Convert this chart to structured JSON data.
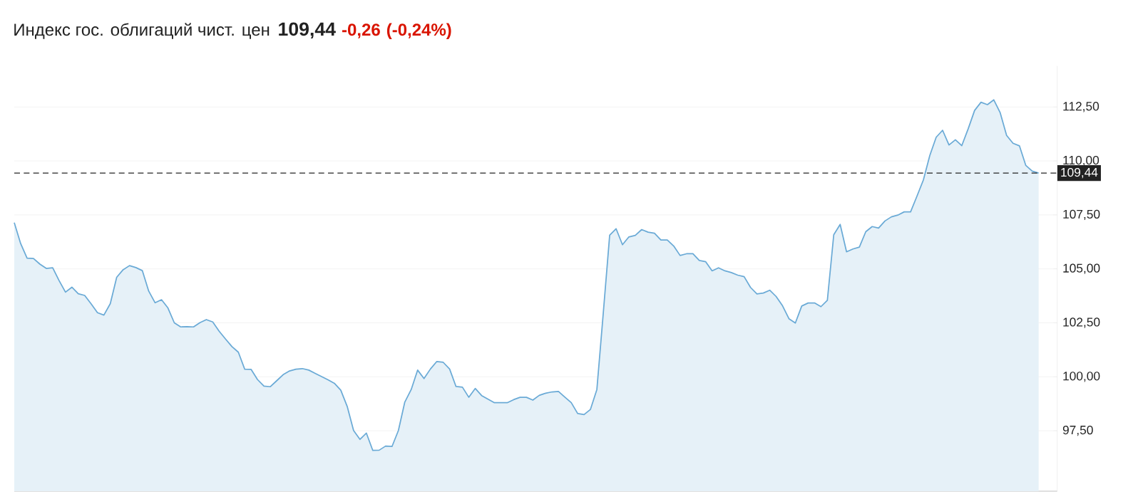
{
  "chart_data": {
    "type": "area",
    "title": "Индекс гос. облигаций чист. цен",
    "annotations": [
      "109,44",
      "-0,26",
      "(-0,24%)"
    ],
    "categories": [
      null,
      null,
      null,
      null,
      null,
      null,
      null,
      null,
      null,
      null,
      null,
      null,
      null,
      null,
      null,
      null,
      null,
      null,
      null,
      null,
      null,
      null,
      null,
      null,
      null,
      null,
      null,
      null,
      null,
      null,
      null,
      null,
      null,
      null,
      null,
      null,
      null,
      null,
      null,
      null,
      null,
      null,
      null,
      null,
      null,
      null,
      null,
      null,
      null,
      null,
      null,
      null,
      null,
      null,
      null,
      null,
      null,
      null,
      null,
      null,
      null,
      null,
      null,
      null,
      null,
      null,
      null,
      null,
      null,
      null,
      null,
      null,
      null,
      null,
      null,
      null,
      null,
      null,
      null,
      null,
      null,
      null,
      null,
      null,
      null,
      null,
      null,
      null,
      null,
      null,
      null,
      null,
      null,
      null,
      null,
      null,
      null,
      null,
      null,
      null,
      null,
      null,
      null,
      null,
      null,
      null,
      null,
      null,
      null,
      null,
      null,
      null,
      null,
      null,
      null,
      null,
      null,
      null,
      null,
      null,
      null,
      null,
      null,
      null,
      null,
      null,
      null,
      null,
      null,
      null,
      null,
      null,
      null,
      null,
      null,
      null,
      null,
      null,
      null,
      null,
      null,
      null,
      null,
      null,
      null,
      null,
      null,
      null,
      null,
      null,
      null,
      null,
      null,
      null,
      null,
      null,
      null,
      null,
      null,
      null,
      null
    ],
    "series": [
      {
        "color": "#6aaad6",
        "values": [
          107.14,
          106.17,
          105.5,
          105.48,
          105.22,
          105.02,
          105.05,
          104.46,
          103.92,
          104.15,
          103.85,
          103.77,
          103.38,
          102.97,
          102.86,
          103.39,
          104.61,
          104.96,
          105.15,
          105.06,
          104.92,
          103.97,
          103.43,
          103.57,
          103.19,
          102.5,
          102.31,
          102.32,
          102.31,
          102.51,
          102.65,
          102.54,
          102.11,
          101.75,
          101.4,
          101.14,
          100.35,
          100.34,
          99.87,
          99.57,
          99.54,
          99.82,
          100.1,
          100.27,
          100.35,
          100.38,
          100.31,
          100.16,
          100.01,
          99.86,
          99.7,
          99.38,
          98.63,
          97.51,
          97.1,
          97.39,
          96.59,
          96.6,
          96.79,
          96.77,
          97.51,
          98.83,
          99.41,
          100.31,
          99.92,
          100.36,
          100.71,
          100.67,
          100.36,
          99.55,
          99.52,
          99.05,
          99.46,
          99.13,
          98.96,
          98.8,
          98.8,
          98.8,
          98.94,
          99.05,
          99.05,
          98.92,
          99.14,
          99.24,
          99.3,
          99.32,
          99.06,
          98.8,
          98.3,
          98.25,
          98.49,
          99.41,
          102.95,
          106.56,
          106.86,
          106.12,
          106.48,
          106.55,
          106.82,
          106.7,
          106.65,
          106.34,
          106.34,
          106.06,
          105.62,
          105.7,
          105.7,
          105.39,
          105.33,
          104.91,
          105.05,
          104.91,
          104.83,
          104.71,
          104.64,
          104.14,
          103.84,
          103.88,
          104.01,
          103.72,
          103.29,
          102.69,
          102.49,
          103.28,
          103.42,
          103.42,
          103.25,
          103.54,
          106.58,
          107.06,
          105.79,
          105.92,
          106.01,
          106.72,
          106.96,
          106.89,
          107.22,
          107.41,
          107.49,
          107.64,
          107.64,
          108.37,
          109.12,
          110.25,
          111.1,
          111.42,
          110.74,
          110.98,
          110.71,
          111.49,
          112.34,
          112.72,
          112.61,
          112.83,
          112.23,
          111.18,
          110.82,
          110.7,
          109.79,
          109.53,
          109.44
        ]
      }
    ],
    "ylim": [
      94.7,
      114.4
    ],
    "yticks": [
      {
        "value": 97.5,
        "label": "97,50"
      },
      {
        "value": 100,
        "label": "100,00"
      },
      {
        "value": 102.5,
        "label": "102,50"
      },
      {
        "value": 105,
        "label": "105,00"
      },
      {
        "value": 107.5,
        "label": "107,50"
      },
      {
        "value": 110,
        "label": "110,00"
      },
      {
        "value": 112.5,
        "label": "112,50"
      }
    ],
    "ref_lines": [
      {
        "axis": "y",
        "value": 109.44,
        "label": "109,44",
        "color": "#222222",
        "line_style": "dashed"
      }
    ],
    "grid": "y"
  }
}
